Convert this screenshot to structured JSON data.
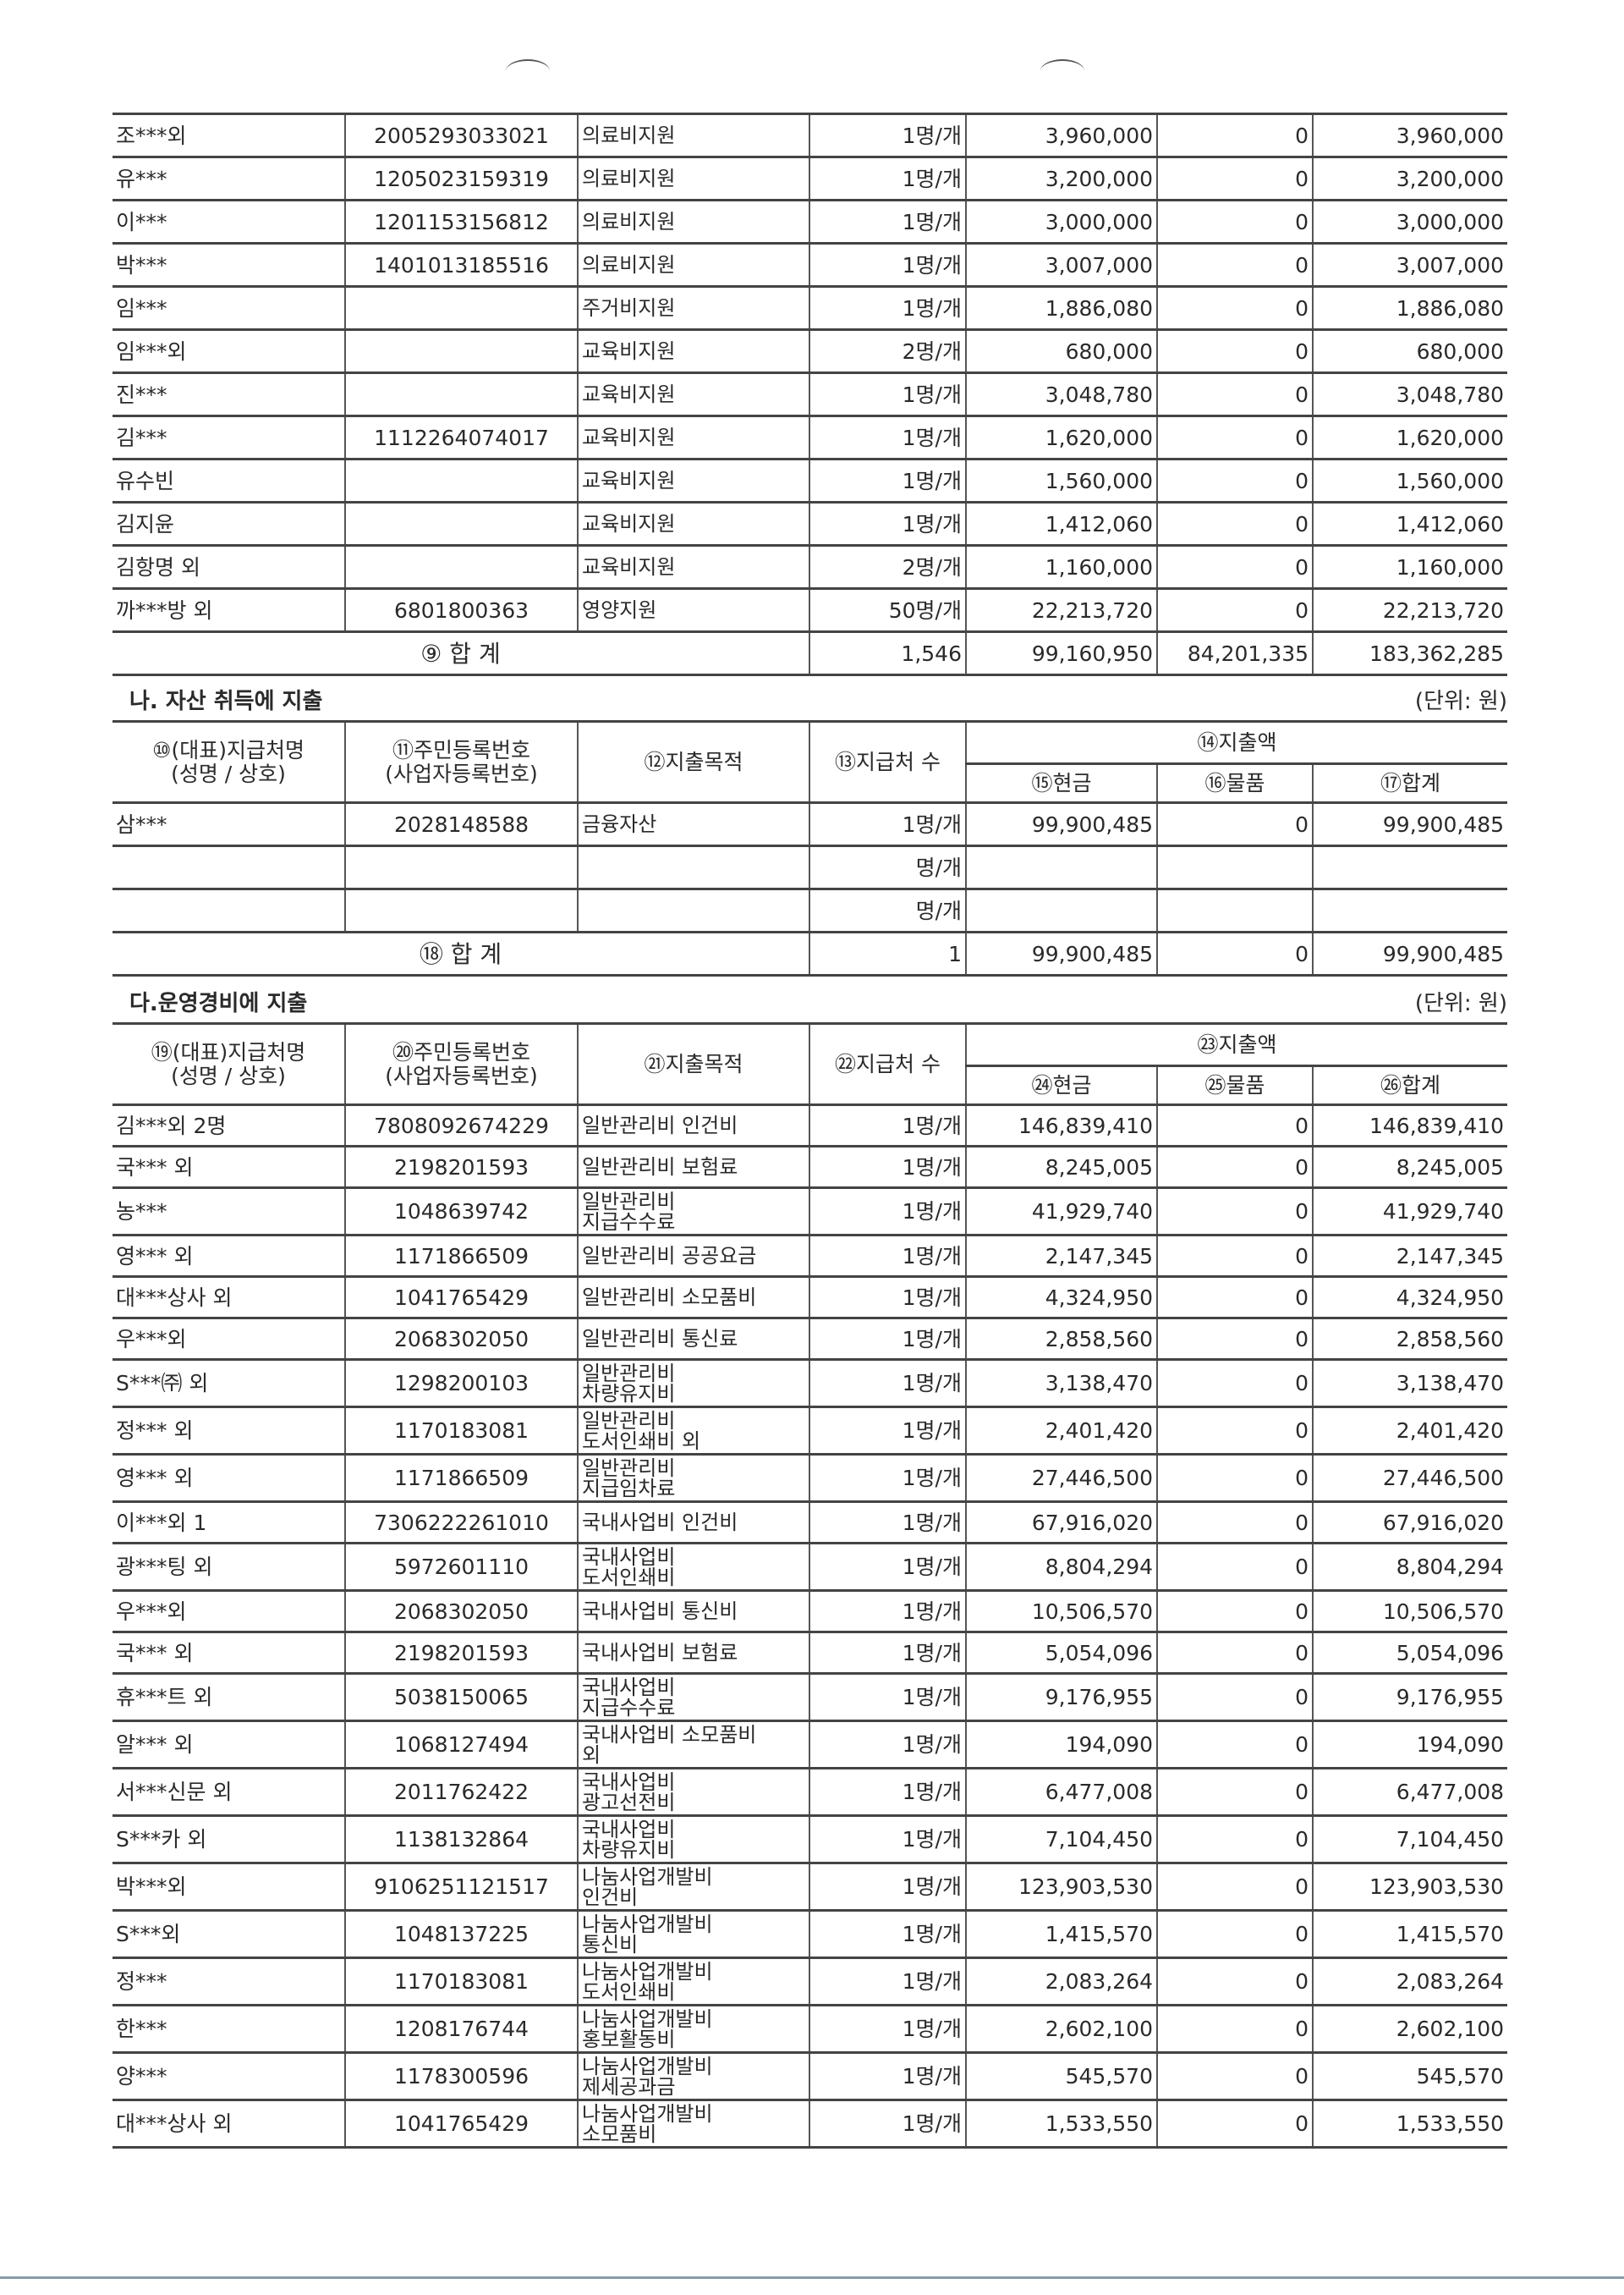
{
  "section_ga": {
    "rows": [
      {
        "name": "조***외",
        "id": "2005293033021",
        "purpose": "의료비지원",
        "count": "1명/개",
        "cash": "3,960,000",
        "goods": "0",
        "total": "3,960,000"
      },
      {
        "name": "유***",
        "id": "1205023159319",
        "purpose": "의료비지원",
        "count": "1명/개",
        "cash": "3,200,000",
        "goods": "0",
        "total": "3,200,000"
      },
      {
        "name": "이***",
        "id": "1201153156812",
        "purpose": "의료비지원",
        "count": "1명/개",
        "cash": "3,000,000",
        "goods": "0",
        "total": "3,000,000"
      },
      {
        "name": "박***",
        "id": "1401013185516",
        "purpose": "의료비지원",
        "count": "1명/개",
        "cash": "3,007,000",
        "goods": "0",
        "total": "3,007,000"
      },
      {
        "name": "임***",
        "id": "",
        "purpose": "주거비지원",
        "count": "1명/개",
        "cash": "1,886,080",
        "goods": "0",
        "total": "1,886,080"
      },
      {
        "name": "임***외",
        "id": "",
        "purpose": "교육비지원",
        "count": "2명/개",
        "cash": "680,000",
        "goods": "0",
        "total": "680,000"
      },
      {
        "name": "진***",
        "id": "",
        "purpose": "교육비지원",
        "count": "1명/개",
        "cash": "3,048,780",
        "goods": "0",
        "total": "3,048,780"
      },
      {
        "name": "김***",
        "id": "1112264074017",
        "purpose": "교육비지원",
        "count": "1명/개",
        "cash": "1,620,000",
        "goods": "0",
        "total": "1,620,000"
      },
      {
        "name": "유수빈",
        "id": "",
        "purpose": "교육비지원",
        "count": "1명/개",
        "cash": "1,560,000",
        "goods": "0",
        "total": "1,560,000"
      },
      {
        "name": "김지윤",
        "id": "",
        "purpose": "교육비지원",
        "count": "1명/개",
        "cash": "1,412,060",
        "goods": "0",
        "total": "1,412,060"
      },
      {
        "name": "김항명 외",
        "id": "",
        "purpose": "교육비지원",
        "count": "2명/개",
        "cash": "1,160,000",
        "goods": "0",
        "total": "1,160,000"
      },
      {
        "name": "까***방 외",
        "id": "6801800363",
        "purpose": "영양지원",
        "count": "50명/개",
        "cash": "22,213,720",
        "goods": "0",
        "total": "22,213,720"
      }
    ],
    "total": {
      "label": "⑨ 합 계",
      "count": "1,546",
      "cash": "99,160,950",
      "goods": "84,201,335",
      "total": "183,362,285"
    }
  },
  "section_na": {
    "title": "나. 자산 취득에 지출",
    "unit": "(단위: 원)",
    "headers": {
      "name": "⑩(대표)지급처명\n(성명 / 상호)",
      "id": "⑪주민등록번호\n(사업자등록번호)",
      "purpose": "⑫지출목적",
      "count": "⑬지급처 수",
      "amount": "⑭지출액",
      "cash": "⑮현금",
      "goods": "⑯물품",
      "total": "⑰합계"
    },
    "rows": [
      {
        "name": "삼***",
        "id": "2028148588",
        "purpose": "금융자산",
        "count": "1명/개",
        "cash": "99,900,485",
        "goods": "0",
        "total": "99,900,485"
      },
      {
        "name": "",
        "id": "",
        "purpose": "",
        "count": "명/개",
        "cash": "",
        "goods": "",
        "total": ""
      },
      {
        "name": "",
        "id": "",
        "purpose": "",
        "count": "명/개",
        "cash": "",
        "goods": "",
        "total": ""
      }
    ],
    "total": {
      "label": "⑱ 합 계",
      "count": "1",
      "cash": "99,900,485",
      "goods": "0",
      "total": "99,900,485"
    }
  },
  "section_da": {
    "title": "다.운영경비에 지출",
    "unit": "(단위: 원)",
    "headers": {
      "name": "⑲(대표)지급처명\n(성명 / 상호)",
      "id": "⑳주민등록번호\n(사업자등록번호)",
      "purpose": "㉑지출목적",
      "count": "㉒지급처 수",
      "amount": "㉓지출액",
      "cash": "㉔현금",
      "goods": "㉕물품",
      "total": "㉖합계"
    },
    "rows": [
      {
        "name": "김***외 2명",
        "id": "7808092674229",
        "purpose": "일반관리비 인건비",
        "count": "1명/개",
        "cash": "146,839,410",
        "goods": "0",
        "total": "146,839,410"
      },
      {
        "name": "국*** 외",
        "id": "2198201593",
        "purpose": "일반관리비 보험료",
        "count": "1명/개",
        "cash": "8,245,005",
        "goods": "0",
        "total": "8,245,005"
      },
      {
        "name": "농***",
        "id": "1048639742",
        "purpose": "일반관리비\n지급수수료",
        "count": "1명/개",
        "cash": "41,929,740",
        "goods": "0",
        "total": "41,929,740"
      },
      {
        "name": "영*** 외",
        "id": "1171866509",
        "purpose": "일반관리비 공공요금",
        "count": "1명/개",
        "cash": "2,147,345",
        "goods": "0",
        "total": "2,147,345"
      },
      {
        "name": "대***상사 외",
        "id": "1041765429",
        "purpose": "일반관리비 소모품비",
        "count": "1명/개",
        "cash": "4,324,950",
        "goods": "0",
        "total": "4,324,950"
      },
      {
        "name": "우***외",
        "id": "2068302050",
        "purpose": "일반관리비 통신료",
        "count": "1명/개",
        "cash": "2,858,560",
        "goods": "0",
        "total": "2,858,560"
      },
      {
        "name": "S***㈜ 외",
        "id": "1298200103",
        "purpose": "일반관리비\n차량유지비",
        "count": "1명/개",
        "cash": "3,138,470",
        "goods": "0",
        "total": "3,138,470"
      },
      {
        "name": "정*** 외",
        "id": "1170183081",
        "purpose": "일반관리비\n도서인쇄비 외",
        "count": "1명/개",
        "cash": "2,401,420",
        "goods": "0",
        "total": "2,401,420"
      },
      {
        "name": "영*** 외",
        "id": "1171866509",
        "purpose": "일반관리비\n지급임차료",
        "count": "1명/개",
        "cash": "27,446,500",
        "goods": "0",
        "total": "27,446,500"
      },
      {
        "name": "이***외 1",
        "id": "7306222261010",
        "purpose": "국내사업비 인건비",
        "count": "1명/개",
        "cash": "67,916,020",
        "goods": "0",
        "total": "67,916,020"
      },
      {
        "name": "광***팅 외",
        "id": "5972601110",
        "purpose": "국내사업비\n도서인쇄비",
        "count": "1명/개",
        "cash": "8,804,294",
        "goods": "0",
        "total": "8,804,294"
      },
      {
        "name": "우***외",
        "id": "2068302050",
        "purpose": "국내사업비 통신비",
        "count": "1명/개",
        "cash": "10,506,570",
        "goods": "0",
        "total": "10,506,570"
      },
      {
        "name": "국*** 외",
        "id": "2198201593",
        "purpose": "국내사업비 보험료",
        "count": "1명/개",
        "cash": "5,054,096",
        "goods": "0",
        "total": "5,054,096"
      },
      {
        "name": "휴***트 외",
        "id": "5038150065",
        "purpose": "국내사업비\n지급수수료",
        "count": "1명/개",
        "cash": "9,176,955",
        "goods": "0",
        "total": "9,176,955"
      },
      {
        "name": "알*** 외",
        "id": "1068127494",
        "purpose": "국내사업비 소모품비\n외",
        "count": "1명/개",
        "cash": "194,090",
        "goods": "0",
        "total": "194,090"
      },
      {
        "name": "서***신문 외",
        "id": "2011762422",
        "purpose": "국내사업비\n광고선전비",
        "count": "1명/개",
        "cash": "6,477,008",
        "goods": "0",
        "total": "6,477,008"
      },
      {
        "name": "S***카 외",
        "id": "1138132864",
        "purpose": "국내사업비\n차량유지비",
        "count": "1명/개",
        "cash": "7,104,450",
        "goods": "0",
        "total": "7,104,450"
      },
      {
        "name": "박***외",
        "id": "9106251121517",
        "purpose": "나눔사업개발비\n인건비",
        "count": "1명/개",
        "cash": "123,903,530",
        "goods": "0",
        "total": "123,903,530"
      },
      {
        "name": "S***외",
        "id": "1048137225",
        "purpose": "나눔사업개발비\n통신비",
        "count": "1명/개",
        "cash": "1,415,570",
        "goods": "0",
        "total": "1,415,570"
      },
      {
        "name": "정***",
        "id": "1170183081",
        "purpose": "나눔사업개발비\n도서인쇄비",
        "count": "1명/개",
        "cash": "2,083,264",
        "goods": "0",
        "total": "2,083,264"
      },
      {
        "name": "한***",
        "id": "1208176744",
        "purpose": "나눔사업개발비\n홍보활동비",
        "count": "1명/개",
        "cash": "2,602,100",
        "goods": "0",
        "total": "2,602,100"
      },
      {
        "name": "양***",
        "id": "1178300596",
        "purpose": "나눔사업개발비\n제세공과금",
        "count": "1명/개",
        "cash": "545,570",
        "goods": "0",
        "total": "545,570"
      },
      {
        "name": "대***상사 외",
        "id": "1041765429",
        "purpose": "나눔사업개발비\n소모품비",
        "count": "1명/개",
        "cash": "1,533,550",
        "goods": "0",
        "total": "1,533,550"
      }
    ]
  }
}
